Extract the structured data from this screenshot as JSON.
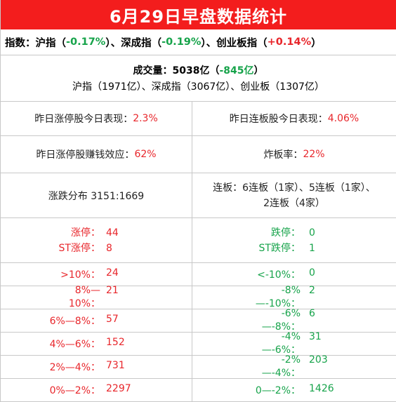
{
  "title": "6月29日早盘数据统计",
  "indices": {
    "prefix": "指数：",
    "sh_label": "沪指（",
    "sh_value": "-0.17%",
    "sz_label": "）、深成指（",
    "sz_value": "-0.19%",
    "cy_label": "）、创业板指（",
    "cy_value": "+0.14%",
    "suffix": "）"
  },
  "volume": {
    "label": "成交量：5038亿（",
    "change": "-845亿",
    "close": "）",
    "breakdown": "沪指（1971亿）、深成指（3067亿）、创业板（1307亿）"
  },
  "stats": {
    "limitup_perf_label": "昨日涨停股今日表现：",
    "limitup_perf_value": "2.3%",
    "consec_perf_label": "昨日连板股今日表现：",
    "consec_perf_value": "4.06%",
    "money_effect_label": "昨日涨停股赚钱效应：",
    "money_effect_value": "62%",
    "break_rate_label": "炸板率：",
    "break_rate_value": "22%",
    "distribution": "涨跌分布 3151:1669",
    "consec_line1": "连板：6连板（1家）、5连板（1家）、",
    "consec_line2": "2连板（4家）"
  },
  "limits": {
    "up_label": "涨停：",
    "up_value": "44",
    "st_up_label": "ST涨停：",
    "st_up_value": "8",
    "down_label": "跌停：",
    "down_value": "0",
    "st_down_label": "ST跌停：",
    "st_down_value": "1"
  },
  "ranges_up": [
    {
      "label": ">10%：",
      "value": "24"
    },
    {
      "label": "8%—10%：",
      "value": "21"
    },
    {
      "label": "6%—8%：",
      "value": "57"
    },
    {
      "label": "4%—6%：",
      "value": "152"
    },
    {
      "label": "2%—4%：",
      "value": "731"
    },
    {
      "label": "0%—2%：",
      "value": "2297"
    }
  ],
  "ranges_down": [
    {
      "label": "<-10%：",
      "value": "0"
    },
    {
      "label": "-8%—-10%：",
      "value": "2"
    },
    {
      "label": "-6%—-8%：",
      "value": "6"
    },
    {
      "label": "-4%—-6%：",
      "value": "31"
    },
    {
      "label": "-2%—-4%：",
      "value": "203"
    },
    {
      "label": "0—-2%：",
      "value": "1426"
    }
  ],
  "colors": {
    "header_bg": "#f31d1d",
    "up": "#e8262b",
    "down": "#16a34a",
    "grid": "#c8c8c8"
  }
}
